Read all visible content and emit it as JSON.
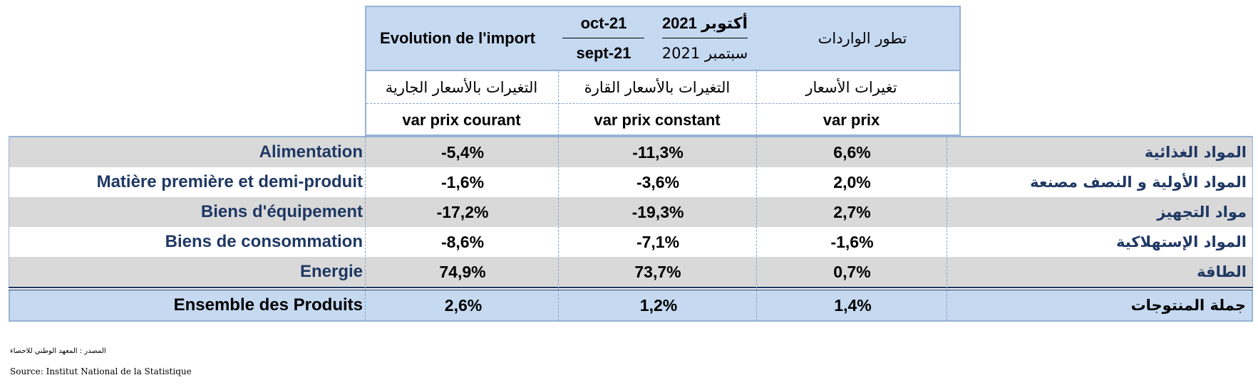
{
  "header": {
    "evolution_fr": "Evolution de l'import",
    "month_num_fr": "oct-21",
    "month_den_fr": "sept-21",
    "month_num_ar": "أكتوبر 2021",
    "month_den_ar": "سبتمبر 2021",
    "evolution_ar": "تطور الواردات",
    "col_current_ar": "التغيرات بالأسعار الجارية",
    "col_constant_ar": "التغيرات بالأسعار القارة",
    "col_price_ar": "تغيرات  الأسعار",
    "col_current_fr": "var prix courant",
    "col_constant_fr": "var prix constant",
    "col_price_fr": "var prix"
  },
  "rows": [
    {
      "label_fr": "Alimentation",
      "label_ar": "المواد  الغذائية",
      "var_current": "-5,4%",
      "var_constant": "-11,3%",
      "var_price": "6,6%"
    },
    {
      "label_fr": "Matière première et demi-produit",
      "label_ar": "المواد الأولية و النصف مصنعة",
      "var_current": "-1,6%",
      "var_constant": "-3,6%",
      "var_price": "2,0%"
    },
    {
      "label_fr": "Biens d'équipement",
      "label_ar": "مواد التجهيز",
      "var_current": "-17,2%",
      "var_constant": "-19,3%",
      "var_price": "2,7%"
    },
    {
      "label_fr": "Biens de consommation",
      "label_ar": "المواد الإستهلاكية",
      "var_current": "-8,6%",
      "var_constant": "-7,1%",
      "var_price": "-1,6%"
    },
    {
      "label_fr": "Energie",
      "label_ar": "الطاقة",
      "var_current": "74,9%",
      "var_constant": "73,7%",
      "var_price": "0,7%"
    }
  ],
  "total": {
    "label_fr": "Ensemble des Produits",
    "label_ar": "جملة المنتوجات",
    "var_current": "2,6%",
    "var_constant": "1,2%",
    "var_price": "1,4%"
  },
  "source": {
    "ar": "المصدر : المعهد الوطني للاحصاء",
    "fr": "Source: Institut National de la Statistique"
  }
}
